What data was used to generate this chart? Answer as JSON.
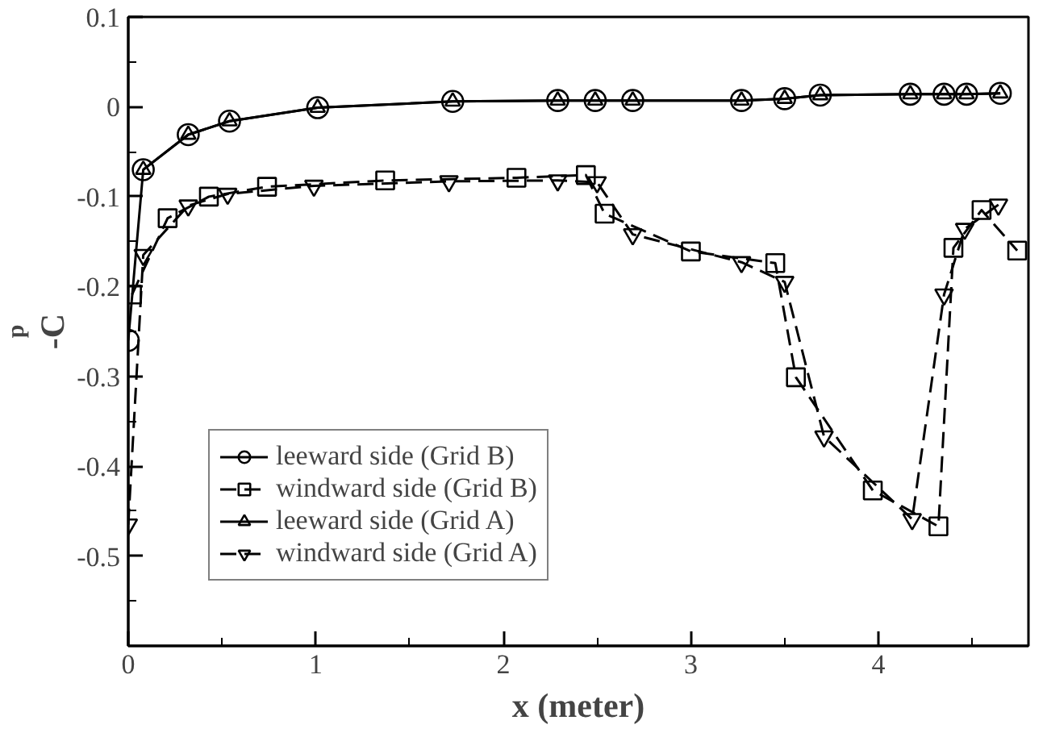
{
  "chart_data": {
    "type": "line",
    "xlabel": "x (meter)",
    "ylabel": "-C$_{p}$",
    "xlim": [
      0,
      4.8
    ],
    "ylim": [
      -0.6,
      0.1
    ],
    "xticks": [
      0,
      {
        "value": 0.5,
        "label": null
      },
      1,
      {
        "value": 1.5,
        "label": null
      },
      2,
      {
        "value": 2.5,
        "label": null
      },
      3,
      {
        "value": 3.5,
        "label": null
      },
      4,
      {
        "value": 4.5,
        "label": null
      }
    ],
    "yticks": [
      {
        "value": -0.6,
        "label": null
      },
      {
        "value": -0.55,
        "label": null
      },
      -0.5,
      {
        "value": -0.45,
        "label": null
      },
      -0.4,
      {
        "value": -0.35,
        "label": null
      },
      -0.3,
      {
        "value": -0.25,
        "label": null
      },
      -0.2,
      {
        "value": -0.15,
        "label": null
      },
      -0.1,
      {
        "value": -0.05,
        "label": null
      },
      0,
      {
        "value": 0.05,
        "label": null
      },
      0.1
    ],
    "grid": false,
    "legend": "bottom left",
    "series": [
      {
        "name": "leeward side (Grid B)",
        "color": "#000000",
        "marker": "circle",
        "line_style": "solid",
        "x": [
          0,
          0.08,
          0.32,
          0.54,
          1.01,
          1.73,
          2.29,
          2.49,
          2.69,
          3.27,
          3.5,
          3.69,
          4.17,
          4.35,
          4.47,
          4.65
        ],
        "values": [
          -0.26,
          -0.07,
          -0.031,
          -0.016,
          -0.001,
          0.006,
          0.007,
          0.007,
          0.007,
          0.007,
          0.009,
          0.013,
          0.014,
          0.014,
          0.014,
          0.015
        ]
      },
      {
        "name": "windward side (Grid B)",
        "color": "#000000",
        "marker": "square",
        "line_style": "dashed",
        "x": [
          0.02,
          0.21,
          0.43,
          0.74,
          1.37,
          2.07,
          2.44,
          2.54,
          3.0,
          3.45,
          3.56,
          3.97,
          4.32,
          4.4,
          4.55,
          4.74
        ],
        "values": [
          -0.209,
          -0.124,
          -0.1,
          -0.089,
          -0.082,
          -0.079,
          -0.076,
          -0.119,
          -0.161,
          -0.174,
          -0.301,
          -0.427,
          -0.467,
          -0.157,
          -0.115,
          -0.16
        ]
      },
      {
        "name": "leeward side (Grid A)",
        "color": "#000000",
        "marker": "triangle",
        "line_style": "solid",
        "x": [
          0.08,
          0.32,
          0.54,
          1.01,
          1.73,
          2.29,
          2.49,
          2.69,
          3.27,
          3.5,
          3.69,
          4.17,
          4.35,
          4.47,
          4.65
        ],
        "values": [
          -0.07,
          -0.031,
          -0.016,
          -0.001,
          0.006,
          0.007,
          0.007,
          0.007,
          0.007,
          0.009,
          0.013,
          0.014,
          0.014,
          0.014,
          0.015
        ]
      },
      {
        "name": "windward side (Grid A)",
        "color": "#000000",
        "marker": "triangle_down",
        "line_style": "dashed",
        "x": [
          0,
          0.08,
          0.32,
          0.53,
          0.99,
          1.71,
          2.29,
          2.5,
          2.69,
          3.27,
          3.5,
          3.71,
          4.18,
          4.35,
          4.46,
          4.64
        ],
        "values": [
          -0.465,
          -0.165,
          -0.11,
          -0.097,
          -0.088,
          -0.083,
          -0.082,
          -0.084,
          -0.142,
          -0.173,
          -0.195,
          -0.367,
          -0.459,
          -0.209,
          -0.136,
          -0.109
        ]
      }
    ]
  }
}
